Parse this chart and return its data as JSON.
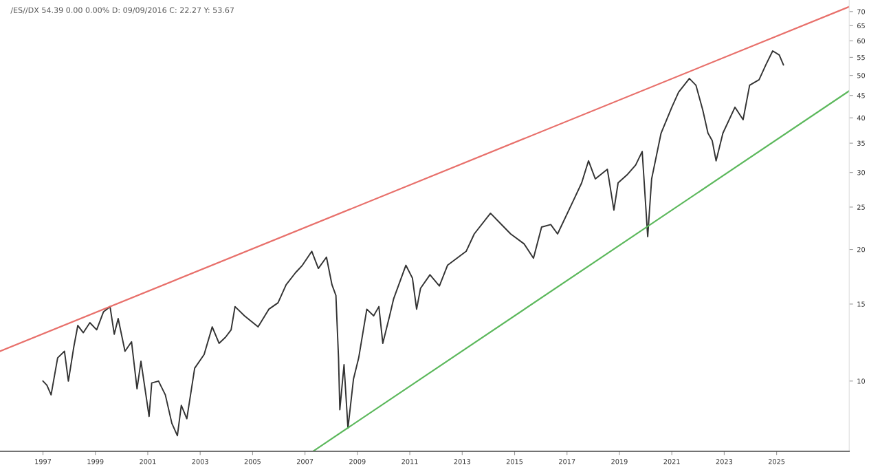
{
  "chart_data": {
    "type": "line",
    "title": "/ES//DX 54.39 0.00 0.00% D: 09/09/2016 C: 22.27 Y: 53.67",
    "log": "y",
    "grid": false,
    "legend": false,
    "marker": "none",
    "line_style": "solid",
    "xlim": [
      1995.36,
      2027.77
    ],
    "xticks": [
      1997,
      1999,
      2001,
      2003,
      2005,
      2007,
      2009,
      2011,
      2013,
      2015,
      2017,
      2019,
      2021,
      2023,
      2025
    ],
    "ylim": [
      6.91,
      74.4
    ],
    "yticks": [
      10,
      15,
      20,
      25,
      30,
      35,
      40,
      45,
      50,
      55,
      60,
      65,
      70
    ],
    "series": [
      {
        "color": "#333333",
        "x": [
          1997.0,
          1997.15,
          1997.31,
          1997.56,
          1997.82,
          1997.97,
          1998.18,
          1998.33,
          1998.54,
          1998.79,
          1999.05,
          1999.31,
          1999.56,
          1999.72,
          1999.87,
          2000.13,
          2000.38,
          2000.59,
          2000.74,
          2001.05,
          2001.15,
          2001.41,
          2001.67,
          2001.92,
          2002.13,
          2002.28,
          2002.49,
          2002.79,
          2003.15,
          2003.46,
          2003.72,
          2003.97,
          2004.18,
          2004.33,
          2004.69,
          2005.21,
          2005.62,
          2005.97,
          2006.28,
          2006.64,
          2006.9,
          2007.26,
          2007.51,
          2007.82,
          2008.03,
          2008.18,
          2008.28,
          2008.33,
          2008.49,
          2008.64,
          2008.85,
          2009.05,
          2009.36,
          2009.62,
          2009.82,
          2009.97,
          2010.23,
          2010.38,
          2010.85,
          2011.1,
          2011.26,
          2011.41,
          2011.77,
          2012.13,
          2012.44,
          2013.15,
          2013.46,
          2014.08,
          2014.44,
          2014.85,
          2015.36,
          2015.72,
          2016.03,
          2016.38,
          2016.64,
          2017.26,
          2017.56,
          2017.82,
          2018.08,
          2018.54,
          2018.79,
          2018.95,
          2019.31,
          2019.62,
          2019.87,
          2020.08,
          2020.23,
          2020.59,
          2021.0,
          2021.26,
          2021.67,
          2021.92,
          2022.18,
          2022.38,
          2022.54,
          2022.69,
          2022.95,
          2023.41,
          2023.72,
          2023.97,
          2024.33,
          2024.59,
          2024.85,
          2025.1,
          2025.26
        ],
        "values": [
          10.0,
          9.78,
          9.3,
          11.3,
          11.7,
          10.0,
          12.0,
          13.4,
          12.9,
          13.6,
          13.1,
          14.4,
          14.8,
          12.8,
          13.9,
          11.7,
          12.3,
          9.6,
          11.1,
          8.3,
          9.9,
          10.0,
          9.3,
          8.0,
          7.5,
          8.8,
          8.2,
          10.7,
          11.5,
          13.3,
          12.2,
          12.6,
          13.1,
          14.8,
          14.1,
          13.3,
          14.6,
          15.1,
          16.6,
          17.7,
          18.4,
          19.8,
          18.1,
          19.2,
          16.6,
          15.7,
          11.3,
          8.6,
          10.9,
          7.8,
          10.1,
          11.3,
          14.6,
          14.1,
          14.8,
          12.2,
          14.1,
          15.4,
          18.4,
          17.2,
          14.6,
          16.3,
          17.5,
          16.5,
          18.4,
          19.8,
          21.7,
          24.2,
          23.0,
          21.7,
          20.6,
          19.1,
          22.5,
          22.8,
          21.7,
          26.0,
          28.4,
          31.9,
          29.0,
          30.5,
          24.6,
          28.4,
          29.7,
          31.2,
          33.5,
          21.4,
          29.0,
          36.9,
          42.3,
          45.8,
          49.2,
          47.5,
          41.7,
          36.9,
          35.5,
          31.9,
          36.9,
          42.3,
          39.6,
          47.5,
          48.9,
          52.9,
          56.9,
          55.7,
          52.9
        ]
      },
      {
        "color": "#e8706b",
        "x": [
          1995.36,
          2027.77
        ],
        "values": [
          11.7,
          71.8
        ]
      },
      {
        "color": "#5cb85c",
        "x": [
          2007.31,
          2027.77
        ],
        "values": [
          6.91,
          46.1
        ]
      }
    ]
  }
}
